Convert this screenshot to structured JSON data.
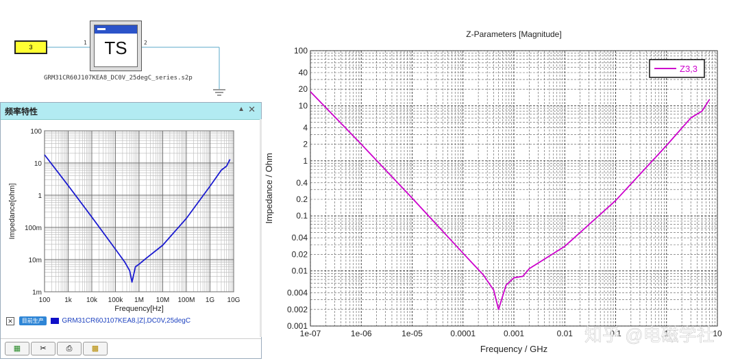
{
  "schematic": {
    "port_label": "3",
    "block_label": "TS",
    "pin1": "1",
    "pin2": "2",
    "file_name": "GRM31CR60J107KEA8_DC0V_25degC_series.s2p"
  },
  "panel": {
    "title": "频率特性",
    "collapse_glyph": "▲",
    "close_glyph": "✕",
    "legend": {
      "checkbox_glyph": "✕",
      "tag": "目前生产",
      "series_text": "GRM31CR60J107KEA8,|Z|,DC0V,25degC",
      "color": "#1010c8"
    },
    "toolbar": [
      {
        "icon": "chart-export-icon",
        "glyph": "▦"
      },
      {
        "icon": "wrench-icon",
        "glyph": "✂"
      },
      {
        "icon": "print-icon",
        "glyph": "⎙"
      },
      {
        "icon": "image-save-icon",
        "glyph": "▩"
      }
    ]
  },
  "chart_data": [
    {
      "type": "line",
      "x_scale": "log",
      "y_scale": "log",
      "xlabel": "Frequency[Hz]",
      "ylabel": "Impedance[ohm]",
      "xlim": [
        100,
        10000000000
      ],
      "ylim": [
        0.001,
        100
      ],
      "x_tick_labels": [
        "100",
        "1k",
        "10k",
        "100k",
        "1M",
        "10M",
        "100M",
        "1G",
        "10G"
      ],
      "y_tick_labels": [
        "100",
        "10",
        "1",
        "100m",
        "10m",
        "1m"
      ],
      "grid": true,
      "series": [
        {
          "name": "GRM31CR60J107KEA8,|Z|,DC0V,25degC",
          "color": "#1a1ad0",
          "x": [
            100,
            1000,
            10000,
            100000,
            250000,
            400000,
            500000,
            700000,
            1000000,
            2000000,
            10000000,
            100000000,
            1000000000,
            3000000000,
            5000000000,
            7000000000
          ],
          "y": [
            18,
            2.0,
            0.21,
            0.021,
            0.0083,
            0.0045,
            0.002,
            0.006,
            0.0072,
            0.011,
            0.028,
            0.19,
            1.9,
            6,
            8,
            13
          ]
        }
      ]
    },
    {
      "type": "line",
      "title": "Z-Parameters [Magnitude]",
      "x_scale": "log",
      "y_scale": "log",
      "xlabel": "Frequency / GHz",
      "ylabel": "Impedance / Ohm",
      "xlim": [
        1e-07,
        10
      ],
      "ylim": [
        0.001,
        100
      ],
      "x_tick_labels": [
        "1e-07",
        "1e-06",
        "1e-05",
        "0.0001",
        "0.001",
        "0.01",
        "0.1",
        "1",
        "10"
      ],
      "y_tick_labels": [
        "100",
        "40",
        "20",
        "10",
        "4",
        "2",
        "1",
        "0.4",
        "0.2",
        "0.1",
        "0.04",
        "0.02",
        "0.01",
        "0.004",
        "0.002",
        "0.001"
      ],
      "grid": true,
      "legend_position": "top-right",
      "series": [
        {
          "name": "Z3,3",
          "color": "#cc00cc",
          "x": [
            1e-07,
            1e-06,
            1e-05,
            0.0001,
            0.00025,
            0.0004,
            0.0005,
            0.0007,
            0.001,
            0.0015,
            0.002,
            0.01,
            0.1,
            1,
            3,
            5,
            7
          ],
          "y": [
            18,
            2.0,
            0.21,
            0.021,
            0.0085,
            0.0045,
            0.002,
            0.0055,
            0.0075,
            0.008,
            0.011,
            0.028,
            0.19,
            1.9,
            6,
            8,
            13
          ]
        }
      ]
    }
  ],
  "watermark": "知乎 @电磁学社"
}
